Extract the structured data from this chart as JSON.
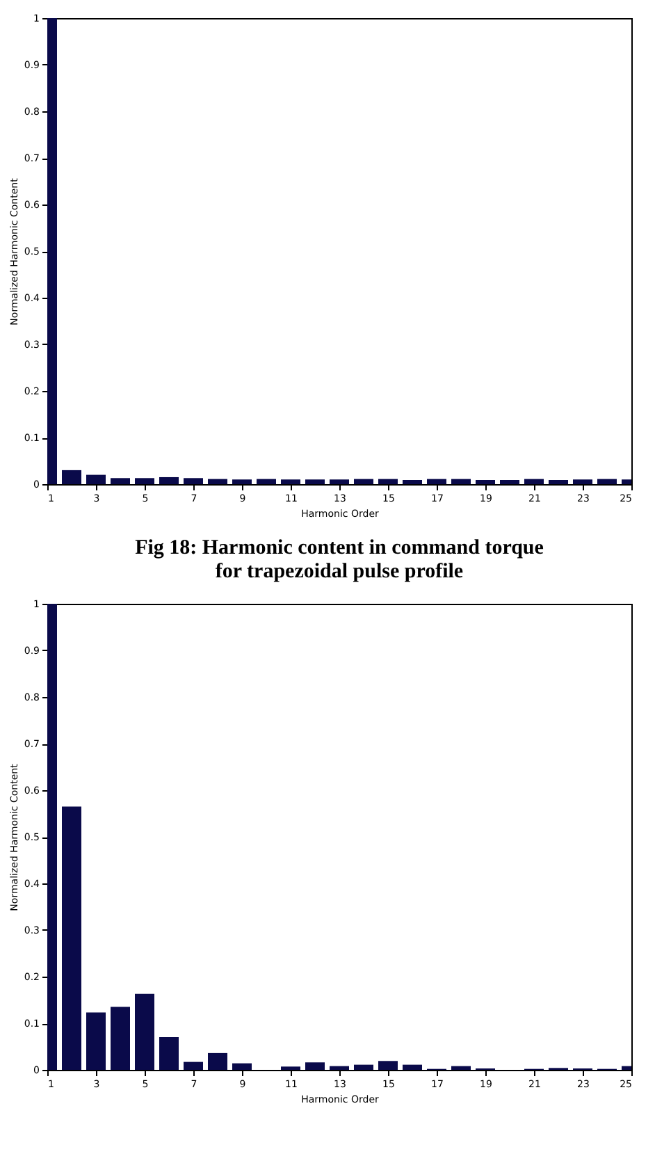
{
  "chart_data": [
    {
      "type": "bar",
      "xlabel": "Harmonic Order",
      "ylabel": "Normalized Harmonic Content",
      "x": [
        1,
        2,
        3,
        4,
        5,
        6,
        7,
        8,
        9,
        10,
        11,
        12,
        13,
        14,
        15,
        16,
        17,
        18,
        19,
        20,
        21,
        22,
        23,
        24,
        25
      ],
      "values": [
        1,
        0.03,
        0.02,
        0.013,
        0.013,
        0.015,
        0.013,
        0.011,
        0.01,
        0.011,
        0.01,
        0.01,
        0.01,
        0.011,
        0.011,
        0.009,
        0.011,
        0.011,
        0.009,
        0.009,
        0.011,
        0.009,
        0.01,
        0.011,
        0.01
      ],
      "color": "#0a0a4a",
      "xlim": [
        1,
        25
      ],
      "xticks": [
        1,
        3,
        5,
        7,
        9,
        11,
        13,
        15,
        17,
        19,
        21,
        23,
        25
      ],
      "ylim": [
        0,
        1
      ],
      "yticks": [
        0,
        0.1,
        0.2,
        0.3,
        0.4,
        0.5,
        0.6,
        0.7,
        0.8,
        0.9,
        1
      ],
      "grid": false,
      "annotations": [
        "Fig 18: Harmonic content in command torque for trapezoidal pulse profile"
      ]
    },
    {
      "type": "bar",
      "xlabel": "Harmonic Order",
      "ylabel": "Normalized Harmonic Content",
      "x": [
        1,
        2,
        3,
        4,
        5,
        6,
        7,
        8,
        9,
        10,
        11,
        12,
        13,
        14,
        15,
        16,
        17,
        18,
        19,
        20,
        21,
        22,
        23,
        24,
        25
      ],
      "values": [
        1,
        0.565,
        0.123,
        0.135,
        0.163,
        0.07,
        0.017,
        0.036,
        0.014,
        0,
        0.007,
        0.016,
        0.008,
        0.011,
        0.019,
        0.011,
        0.002,
        0.008,
        0.003,
        0,
        0.002,
        0.004,
        0.003,
        0.002,
        0.008
      ],
      "color": "#0a0a4a",
      "xlim": [
        1,
        25
      ],
      "xticks": [
        1,
        3,
        5,
        7,
        9,
        11,
        13,
        15,
        17,
        19,
        21,
        23,
        25
      ],
      "ylim": [
        0,
        1
      ],
      "yticks": [
        0,
        0.1,
        0.2,
        0.3,
        0.4,
        0.5,
        0.6,
        0.7,
        0.8,
        0.9,
        1
      ],
      "grid": false
    }
  ]
}
